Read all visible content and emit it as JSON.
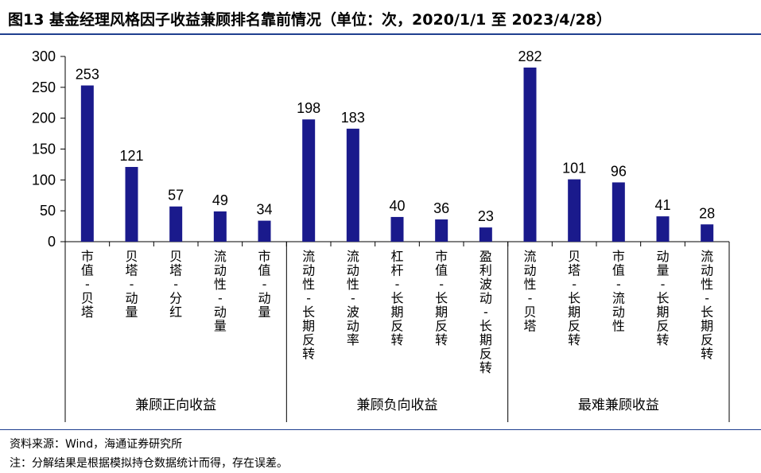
{
  "header": {
    "title": "图13 基金经理风格因子收益兼顾排名靠前情况（单位：次，2020/1/1 至 2023/4/28）"
  },
  "chart_data": {
    "type": "bar",
    "title": "图13 基金经理风格因子收益兼顾排名靠前情况（单位：次，2020/1/1 至 2023/4/28）",
    "ylim": [
      0,
      300
    ],
    "yticks": [
      "0",
      "50",
      "100",
      "150",
      "200",
      "250",
      "300"
    ],
    "categories": [
      "市值-贝塔",
      "贝塔-动量",
      "贝塔-分红",
      "流动性-动量",
      "市值-动量",
      "流动性-长期反转",
      "流动性-波动率",
      "杠杆-长期反转",
      "市值-长期反转",
      "盈利波动-长期反转",
      "流动性-贝塔",
      "贝塔-长期反转",
      "市值-流动性",
      "动量-长期反转",
      "流动性-长期反转"
    ],
    "values": [
      253,
      121,
      57,
      49,
      34,
      198,
      183,
      40,
      36,
      23,
      282,
      101,
      96,
      41,
      28
    ],
    "groups": [
      {
        "label": "兼顾正向收益",
        "count": 5
      },
      {
        "label": "兼顾负向收益",
        "count": 5
      },
      {
        "label": "最难兼顾收益",
        "count": 5
      }
    ],
    "bar_color": "#1a1a8c",
    "grid": false,
    "legend": "none"
  },
  "footer": {
    "source": "资料来源：Wind，海通证券研究所",
    "note": "注：分解结果是根据模拟持仓数据统计而得，存在误差。"
  }
}
